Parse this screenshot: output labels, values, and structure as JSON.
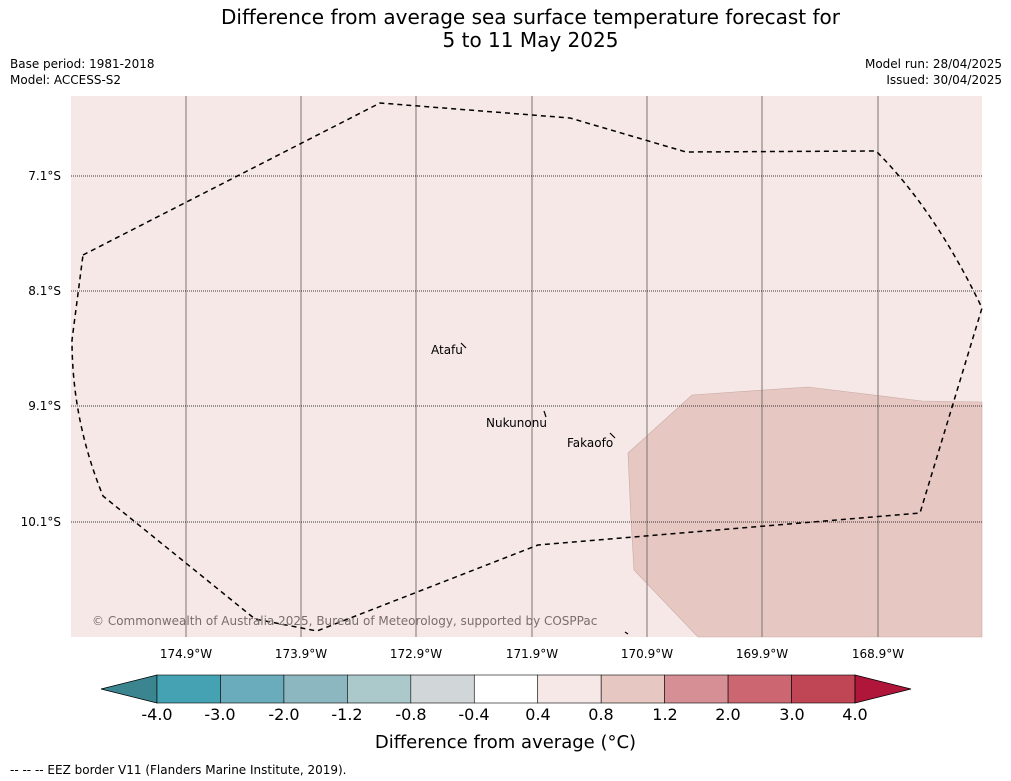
{
  "title_line1": "Difference from average sea surface temperature forecast for",
  "title_line2": "5 to 11 May 2025",
  "meta_left": {
    "base_period": "Base period: 1981-2018",
    "model": "Model: ACCESS-S2"
  },
  "meta_right": {
    "model_run": "Model run: 28/04/2025",
    "issued": "Issued: 30/04/2025"
  },
  "map": {
    "background_color": "#f5e8e7",
    "warm_region_color": "#e7c7c2",
    "latitude_labels": [
      "7.1°S",
      "8.1°S",
      "9.1°S",
      "10.1°S"
    ],
    "longitude_labels": [
      "174.9°W",
      "173.9°W",
      "172.9°W",
      "171.9°W",
      "170.9°W",
      "169.9°W",
      "168.9°W"
    ],
    "places": [
      "Atafu",
      "Nukunonu",
      "Fakaofo"
    ],
    "copyright": "© Commonwealth of Australia 2025, Bureau of Meteorology, supported by COSPPac"
  },
  "colorbar": {
    "ticks": [
      "-4.0",
      "-3.0",
      "-2.0",
      "-1.2",
      "-0.8",
      "-0.4",
      "0.4",
      "0.8",
      "1.2",
      "2.0",
      "3.0",
      "4.0"
    ],
    "low_extend_color": "#3a8590",
    "high_extend_color": "#b0153a",
    "segment_colors": [
      "#45a2b3",
      "#6aacbb",
      "#8db7c0",
      "#abc8cb",
      "#d1d6d8",
      "#ffffff",
      "#f5e8e7",
      "#e7c7c2",
      "#d78f96",
      "#cc6671",
      "#c04555"
    ],
    "label": "Difference from average (°C)"
  },
  "footer": "--  --  -- EEZ border V11 (Flanders Marine Institute, 2019)."
}
